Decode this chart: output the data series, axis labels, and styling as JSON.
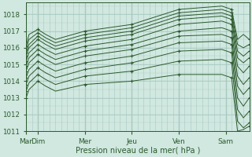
{
  "xlabel": "Pression niveau de la mer( hPa )",
  "bg_color": "#d0e8e0",
  "grid_color": "#a8c8c0",
  "line_color": "#2d5a2d",
  "text_color": "#2d5a2d",
  "ylim": [
    1011.0,
    1018.7
  ],
  "yticks": [
    1011,
    1012,
    1013,
    1014,
    1015,
    1016,
    1017,
    1018
  ],
  "day_x": [
    0,
    12,
    60,
    108,
    156,
    204,
    228
  ],
  "day_labels": [
    "Mar",
    "Dim",
    "Mer",
    "Jeu",
    "Ven",
    "Sam"
  ],
  "xlim": [
    0,
    228
  ],
  "ensemble": [
    {
      "pts": [
        [
          0,
          1016.1
        ],
        [
          3,
          1016.8
        ],
        [
          12,
          1017.1
        ],
        [
          20,
          1016.8
        ],
        [
          30,
          1016.5
        ],
        [
          60,
          1017.0
        ],
        [
          108,
          1017.4
        ],
        [
          156,
          1018.3
        ],
        [
          200,
          1018.5
        ],
        [
          210,
          1018.3
        ],
        [
          216,
          1016.5
        ],
        [
          222,
          1016.8
        ],
        [
          228,
          1016.5
        ]
      ]
    },
    {
      "pts": [
        [
          0,
          1015.9
        ],
        [
          3,
          1016.5
        ],
        [
          12,
          1016.9
        ],
        [
          20,
          1016.6
        ],
        [
          30,
          1016.3
        ],
        [
          60,
          1016.8
        ],
        [
          108,
          1017.2
        ],
        [
          156,
          1018.1
        ],
        [
          200,
          1018.3
        ],
        [
          210,
          1018.1
        ],
        [
          216,
          1016.2
        ],
        [
          222,
          1016.0
        ],
        [
          228,
          1016.2
        ]
      ]
    },
    {
      "pts": [
        [
          0,
          1015.7
        ],
        [
          3,
          1016.2
        ],
        [
          12,
          1016.7
        ],
        [
          20,
          1016.4
        ],
        [
          30,
          1016.1
        ],
        [
          60,
          1016.6
        ],
        [
          108,
          1017.0
        ],
        [
          156,
          1017.9
        ],
        [
          200,
          1018.1
        ],
        [
          210,
          1017.9
        ],
        [
          216,
          1015.8
        ],
        [
          222,
          1015.5
        ],
        [
          228,
          1015.8
        ]
      ]
    },
    {
      "pts": [
        [
          0,
          1015.5
        ],
        [
          3,
          1016.0
        ],
        [
          12,
          1016.5
        ],
        [
          20,
          1016.2
        ],
        [
          30,
          1015.9
        ],
        [
          60,
          1016.4
        ],
        [
          108,
          1016.8
        ],
        [
          156,
          1017.7
        ],
        [
          200,
          1017.9
        ],
        [
          210,
          1017.7
        ],
        [
          216,
          1015.4
        ],
        [
          222,
          1015.1
        ],
        [
          228,
          1015.4
        ]
      ]
    },
    {
      "pts": [
        [
          0,
          1015.2
        ],
        [
          3,
          1015.7
        ],
        [
          12,
          1016.2
        ],
        [
          20,
          1015.9
        ],
        [
          30,
          1015.6
        ],
        [
          60,
          1016.1
        ],
        [
          108,
          1016.5
        ],
        [
          156,
          1017.4
        ],
        [
          200,
          1017.6
        ],
        [
          210,
          1017.4
        ],
        [
          216,
          1014.9
        ],
        [
          222,
          1014.5
        ],
        [
          228,
          1014.9
        ]
      ]
    },
    {
      "pts": [
        [
          0,
          1014.9
        ],
        [
          3,
          1015.4
        ],
        [
          12,
          1015.9
        ],
        [
          20,
          1015.6
        ],
        [
          30,
          1015.3
        ],
        [
          60,
          1015.8
        ],
        [
          108,
          1016.2
        ],
        [
          156,
          1017.0
        ],
        [
          200,
          1017.2
        ],
        [
          210,
          1017.0
        ],
        [
          216,
          1014.3
        ],
        [
          222,
          1013.8
        ],
        [
          228,
          1014.2
        ]
      ]
    },
    {
      "pts": [
        [
          0,
          1014.6
        ],
        [
          3,
          1015.1
        ],
        [
          12,
          1015.6
        ],
        [
          20,
          1015.3
        ],
        [
          30,
          1015.0
        ],
        [
          60,
          1015.5
        ],
        [
          108,
          1015.9
        ],
        [
          156,
          1016.7
        ],
        [
          200,
          1016.8
        ],
        [
          210,
          1016.6
        ],
        [
          216,
          1013.7
        ],
        [
          222,
          1013.2
        ],
        [
          228,
          1013.6
        ]
      ]
    },
    {
      "pts": [
        [
          0,
          1014.2
        ],
        [
          3,
          1014.7
        ],
        [
          12,
          1015.2
        ],
        [
          20,
          1014.9
        ],
        [
          30,
          1014.6
        ],
        [
          60,
          1015.1
        ],
        [
          108,
          1015.5
        ],
        [
          156,
          1016.3
        ],
        [
          200,
          1016.4
        ],
        [
          210,
          1016.2
        ],
        [
          216,
          1013.0
        ],
        [
          222,
          1012.5
        ],
        [
          228,
          1013.0
        ]
      ]
    },
    {
      "pts": [
        [
          0,
          1013.8
        ],
        [
          3,
          1014.3
        ],
        [
          12,
          1014.8
        ],
        [
          20,
          1014.5
        ],
        [
          30,
          1014.2
        ],
        [
          60,
          1014.7
        ],
        [
          108,
          1015.1
        ],
        [
          156,
          1015.8
        ],
        [
          200,
          1015.9
        ],
        [
          210,
          1015.7
        ],
        [
          216,
          1012.3
        ],
        [
          222,
          1011.8
        ],
        [
          228,
          1012.2
        ]
      ]
    },
    {
      "pts": [
        [
          0,
          1013.4
        ],
        [
          3,
          1013.9
        ],
        [
          12,
          1014.4
        ],
        [
          20,
          1014.1
        ],
        [
          30,
          1013.8
        ],
        [
          60,
          1014.3
        ],
        [
          108,
          1014.6
        ],
        [
          156,
          1015.2
        ],
        [
          200,
          1015.3
        ],
        [
          210,
          1015.1
        ],
        [
          216,
          1011.6
        ],
        [
          222,
          1011.2
        ],
        [
          228,
          1011.5
        ]
      ]
    },
    {
      "pts": [
        [
          0,
          1013.0
        ],
        [
          3,
          1013.5
        ],
        [
          12,
          1014.0
        ],
        [
          20,
          1013.7
        ],
        [
          30,
          1013.4
        ],
        [
          60,
          1013.8
        ],
        [
          108,
          1014.0
        ],
        [
          156,
          1014.4
        ],
        [
          200,
          1014.4
        ],
        [
          210,
          1014.2
        ],
        [
          216,
          1011.0
        ],
        [
          222,
          1011.1
        ],
        [
          228,
          1011.3
        ]
      ]
    }
  ]
}
